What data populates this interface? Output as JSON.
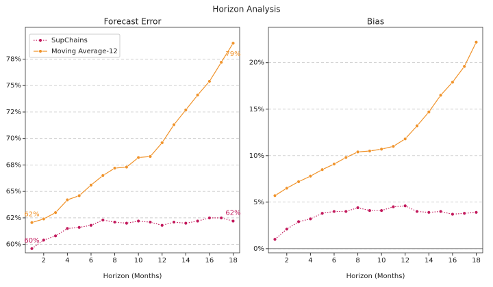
{
  "title": "Horizon Analysis",
  "chart_data": [
    {
      "type": "line",
      "title": "Forecast Error",
      "x_label": "Horizon (Months)",
      "x": [
        1,
        2,
        3,
        4,
        5,
        6,
        7,
        8,
        9,
        10,
        11,
        12,
        13,
        14,
        15,
        16,
        17,
        18
      ],
      "xlim": [
        0.45,
        18.55
      ],
      "xticks": [
        2,
        4,
        6,
        8,
        10,
        12,
        14,
        16,
        18
      ],
      "ylim": [
        59.2,
        80.5
      ],
      "yticks": [
        {
          "value": 60,
          "label": "60%"
        },
        {
          "value": 62.5,
          "label": "62%"
        },
        {
          "value": 65,
          "label": "65%"
        },
        {
          "value": 67.5,
          "label": "68%"
        },
        {
          "value": 70,
          "label": "70%"
        },
        {
          "value": 72.5,
          "label": "72%"
        },
        {
          "value": 75,
          "label": "75%"
        },
        {
          "value": 77.5,
          "label": "78%"
        }
      ],
      "grid": true,
      "legend": "upper left",
      "zero_line": false,
      "series": [
        {
          "name": "SupChains",
          "color": "#c2185b",
          "linestyle": "dotted",
          "values": [
            59.6,
            60.4,
            60.8,
            61.5,
            61.6,
            61.8,
            62.3,
            62.1,
            62.0,
            62.2,
            62.1,
            61.8,
            62.1,
            62.0,
            62.2,
            62.5,
            62.5,
            62.2
          ],
          "value_labels": [
            "60%",
            null,
            null,
            null,
            null,
            null,
            null,
            null,
            null,
            null,
            null,
            null,
            null,
            null,
            null,
            null,
            null,
            "62%"
          ]
        },
        {
          "name": "Moving Average-12",
          "color": "#f0932b",
          "linestyle": "solid",
          "values": [
            62.06,
            62.4,
            63.0,
            64.2,
            64.6,
            65.6,
            66.5,
            67.2,
            67.3,
            68.2,
            68.3,
            69.6,
            71.3,
            72.7,
            74.1,
            75.4,
            77.2,
            79.0
          ],
          "value_labels": [
            "62%",
            null,
            null,
            null,
            null,
            null,
            null,
            null,
            null,
            null,
            null,
            null,
            null,
            null,
            null,
            null,
            null,
            "79%"
          ]
        }
      ]
    },
    {
      "type": "line",
      "title": "Bias",
      "x_label": "Horizon (Months)",
      "x": [
        1,
        2,
        3,
        4,
        5,
        6,
        7,
        8,
        9,
        10,
        11,
        12,
        13,
        14,
        15,
        16,
        17,
        18
      ],
      "xlim": [
        0.45,
        18.55
      ],
      "xticks": [
        2,
        4,
        6,
        8,
        10,
        12,
        14,
        16,
        18
      ],
      "ylim": [
        -0.45,
        23.8
      ],
      "yticks": [
        {
          "value": 0,
          "label": "0%"
        },
        {
          "value": 5,
          "label": "5%"
        },
        {
          "value": 10,
          "label": "10%"
        },
        {
          "value": 15,
          "label": "15%"
        },
        {
          "value": 20,
          "label": "20%"
        }
      ],
      "grid": true,
      "zero_line": true,
      "series": [
        {
          "name": "SupChains",
          "color": "#c2185b",
          "linestyle": "dotted",
          "values": [
            1.0,
            2.1,
            2.9,
            3.2,
            3.8,
            4.0,
            4.0,
            4.4,
            4.1,
            4.1,
            4.5,
            4.6,
            4.0,
            3.9,
            4.0,
            3.7,
            3.8,
            3.9
          ]
        },
        {
          "name": "Moving Average-12",
          "color": "#f0932b",
          "linestyle": "solid",
          "values": [
            5.7,
            6.5,
            7.2,
            7.8,
            8.5,
            9.1,
            9.8,
            10.4,
            10.5,
            10.7,
            11.0,
            11.8,
            13.2,
            14.7,
            16.5,
            17.9,
            19.6,
            22.2
          ]
        }
      ]
    }
  ]
}
